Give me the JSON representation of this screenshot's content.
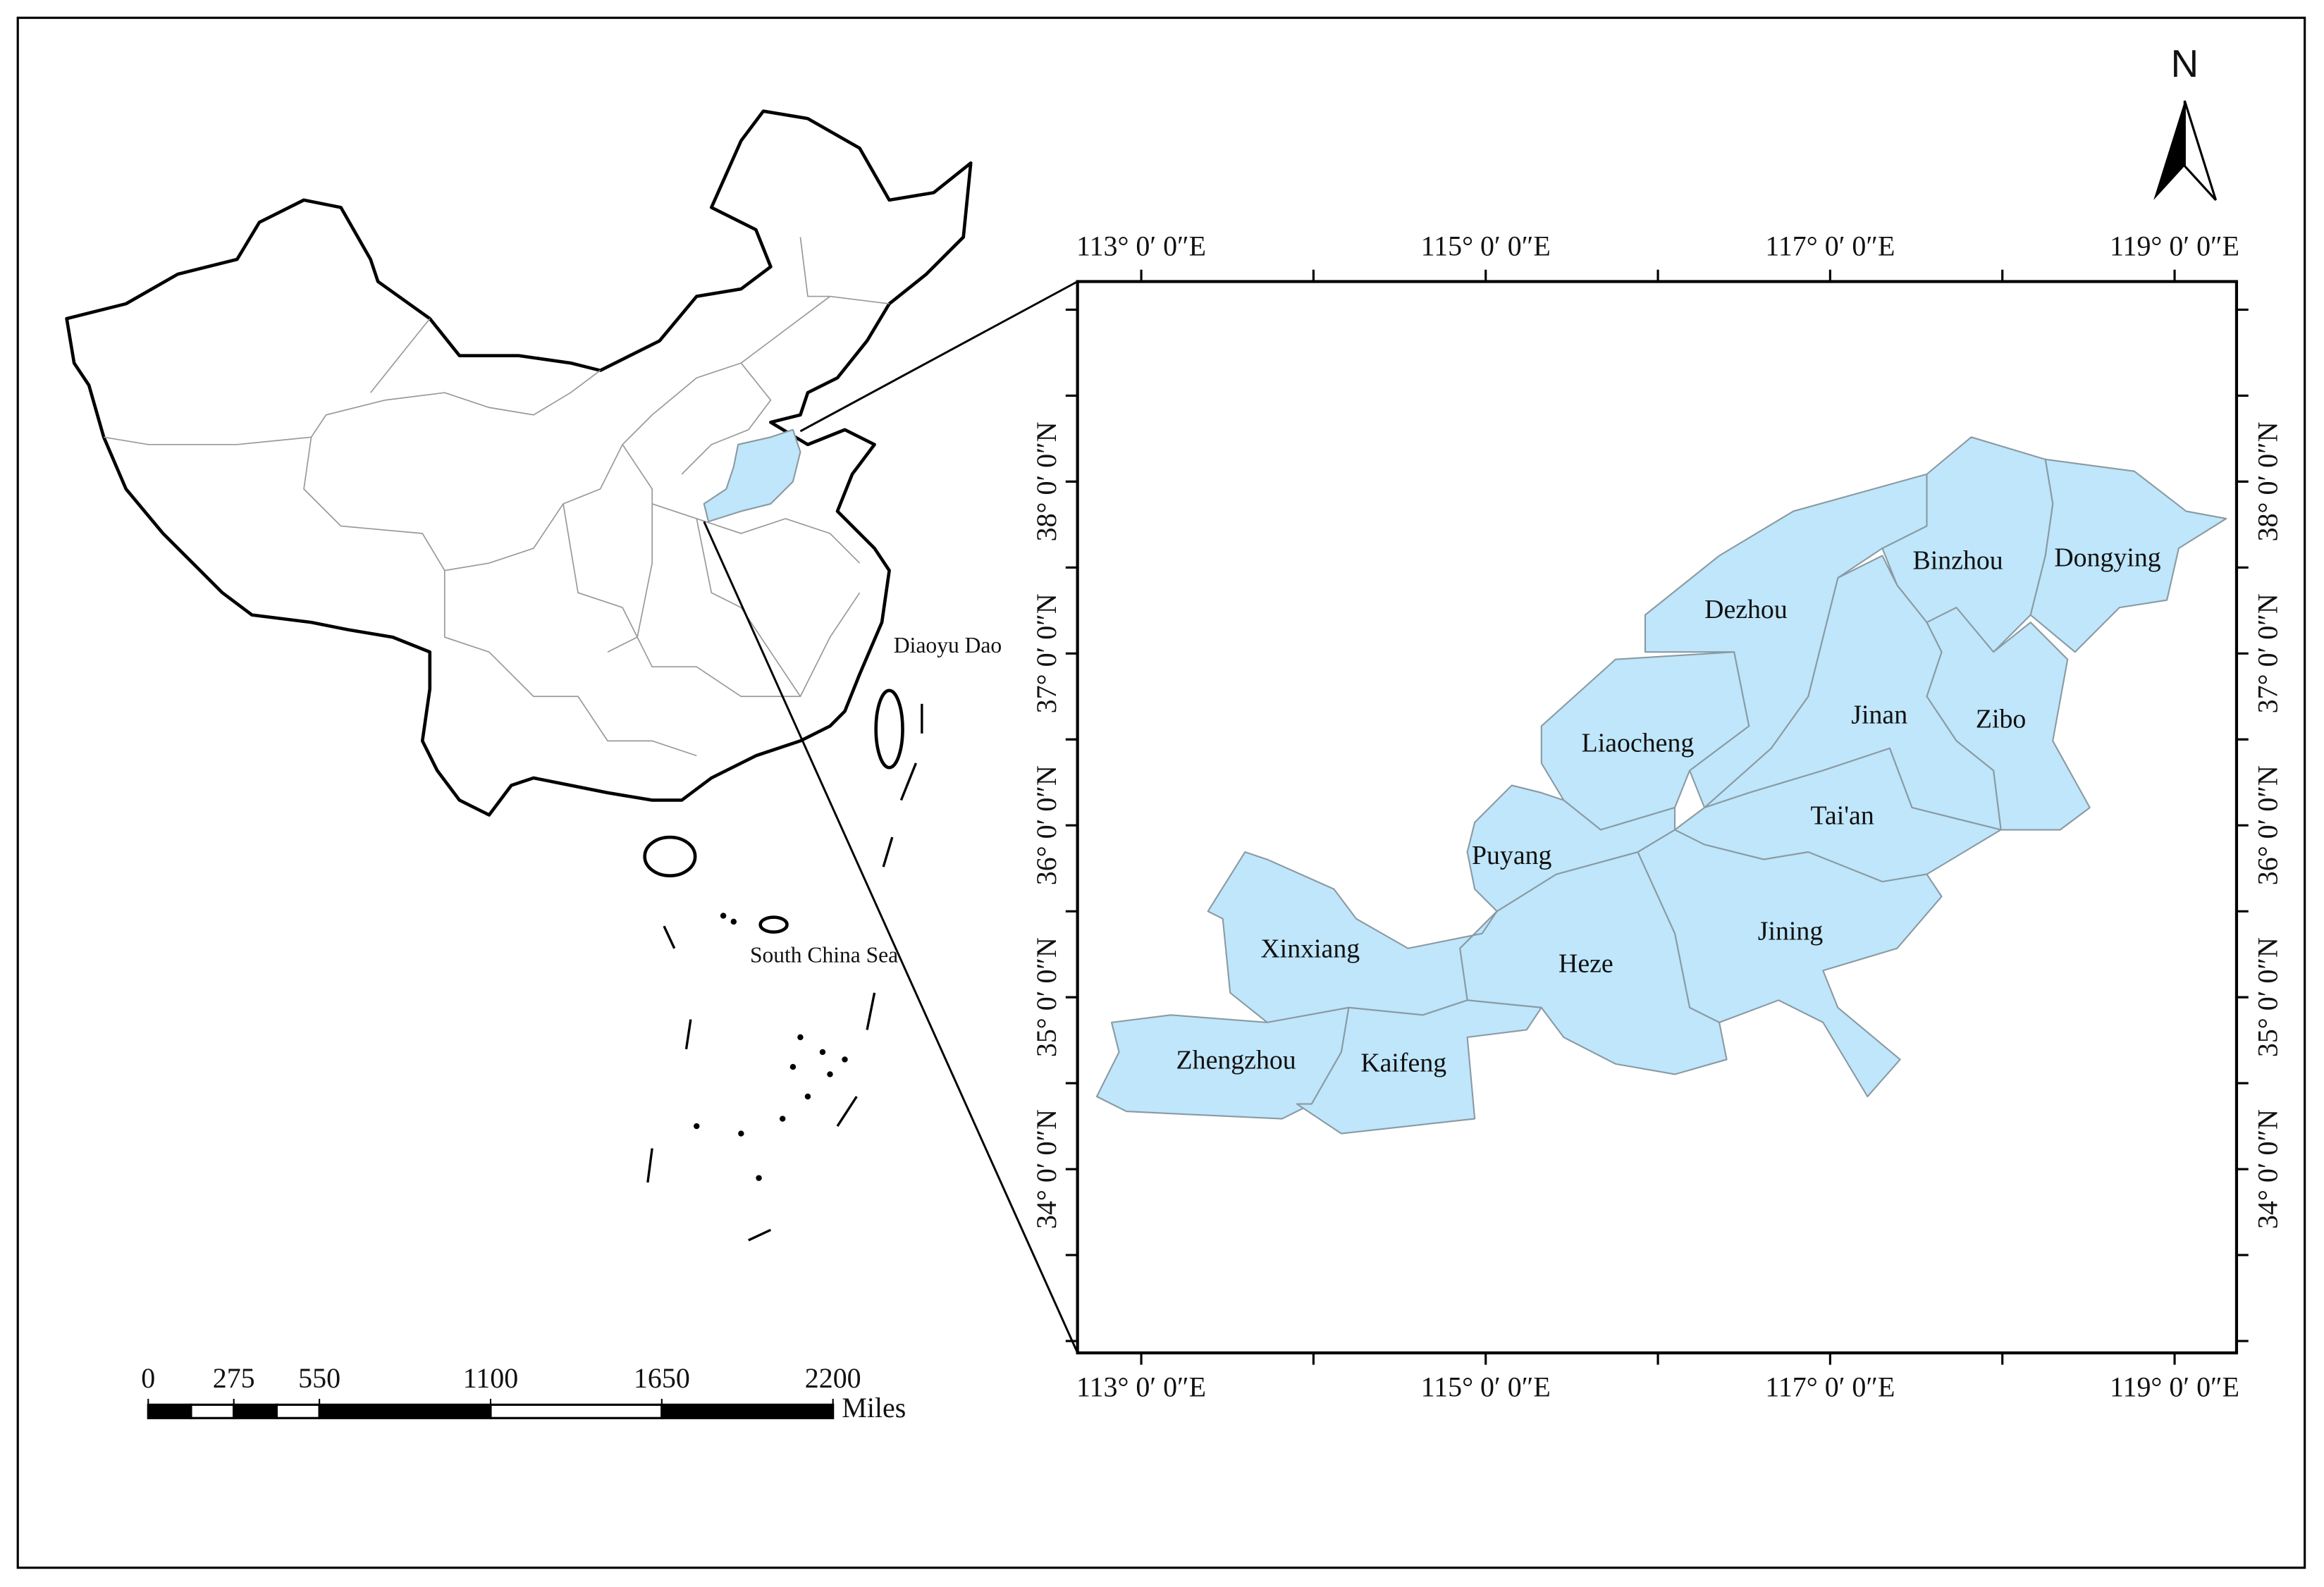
{
  "north_arrow": {
    "label": "N"
  },
  "overview": {
    "labels": [
      "Diaoyu Dao",
      "South China Sea"
    ]
  },
  "scale_bar": {
    "ticks": [
      0,
      275,
      550,
      1100,
      1650,
      2200
    ],
    "unit": "Miles"
  },
  "frame": {
    "longitudes": [
      {
        "value": 113,
        "label": "113° 0′ 0″E"
      },
      {
        "value": 115,
        "label": "115° 0′ 0″E"
      },
      {
        "value": 117,
        "label": "117° 0′ 0″E"
      },
      {
        "value": 119,
        "label": "119° 0′ 0″E"
      }
    ],
    "latitudes": [
      {
        "value": 38,
        "label": "38° 0′ 0″N"
      },
      {
        "value": 37,
        "label": "37° 0′ 0″N"
      },
      {
        "value": 36,
        "label": "36° 0′ 0″N"
      },
      {
        "value": 35,
        "label": "35° 0′ 0″N"
      },
      {
        "value": 34,
        "label": "34° 0′ 0″N"
      }
    ]
  },
  "cities": [
    "Dongying",
    "Binzhou",
    "Zibo",
    "Jinan",
    "Dezhou",
    "Liaocheng",
    "Tai'an",
    "Jining",
    "Heze",
    "Puyang",
    "Xinxiang",
    "Zhengzhou",
    "Kaifeng"
  ]
}
